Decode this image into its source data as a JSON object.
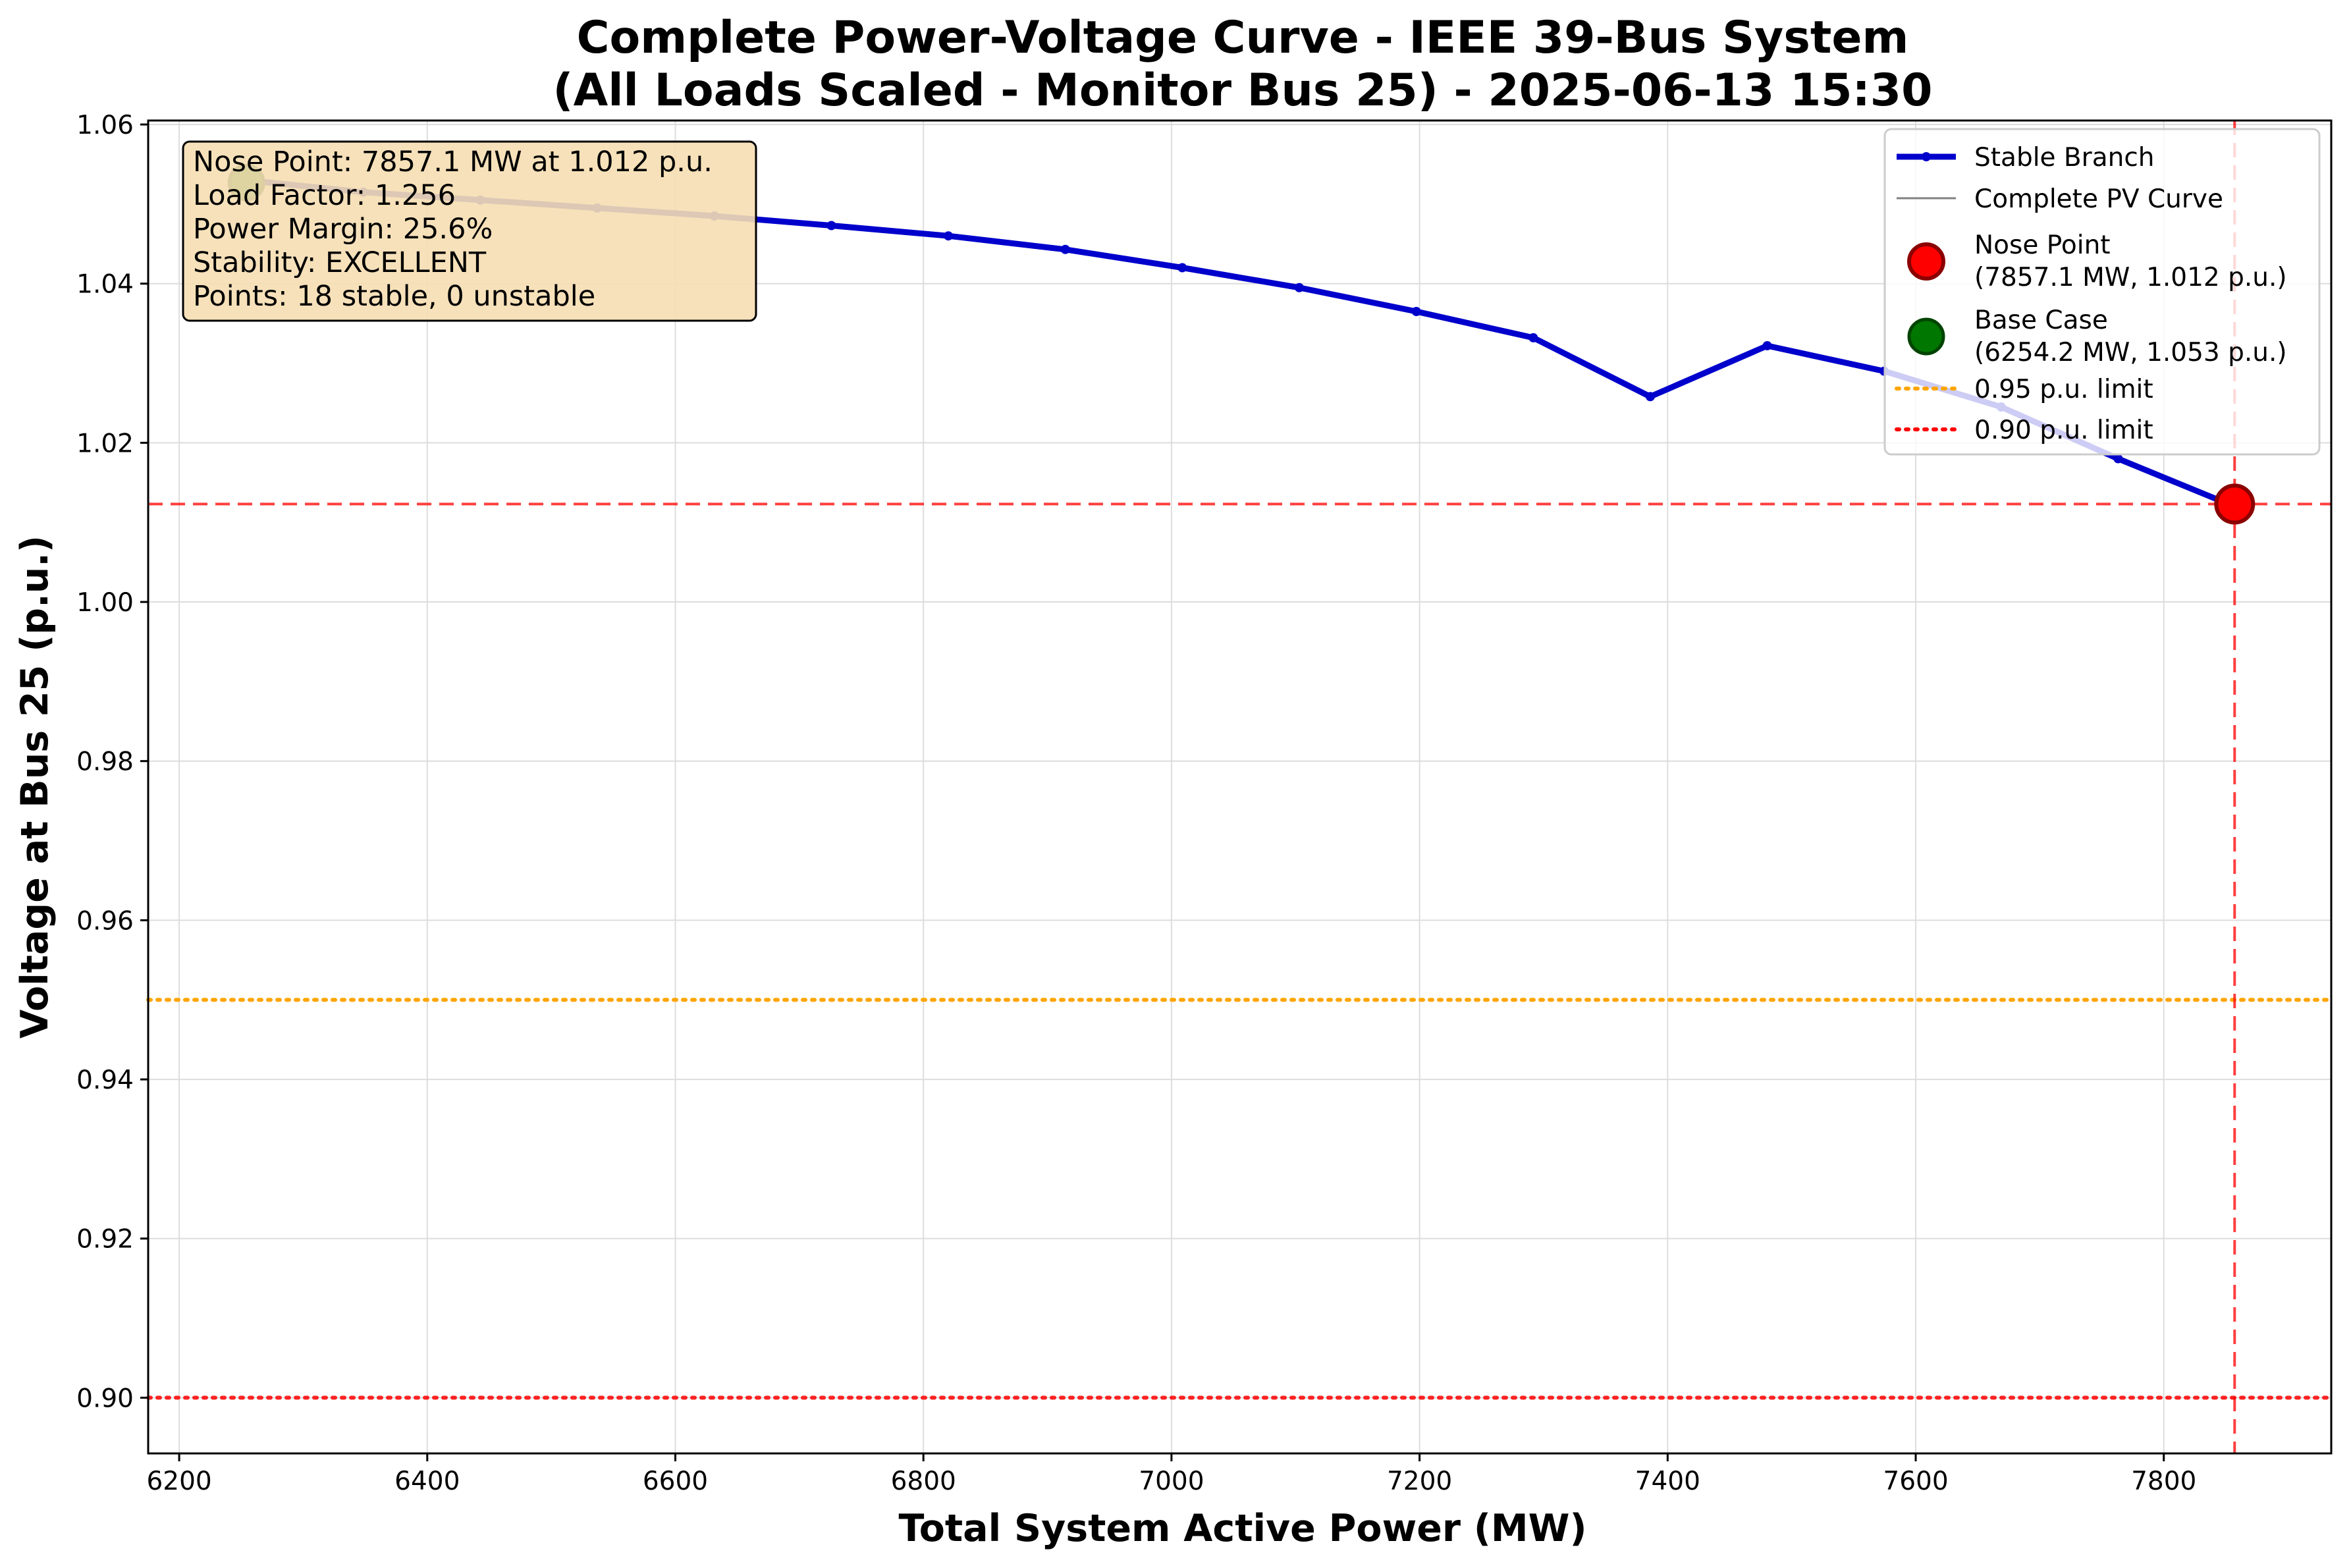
{
  "chart_data": {
    "type": "line",
    "title_line1": "Complete Power-Voltage Curve - IEEE 39-Bus System",
    "title_line2": "(All Loads Scaled - Monitor Bus 25) - 2025-06-13 15:30",
    "xlabel": "Total System Active Power (MW)",
    "ylabel": "Voltage at Bus 25 (p.u.)",
    "xlim": [
      6175,
      7935
    ],
    "ylim": [
      0.893,
      1.0605
    ],
    "xticks": [
      6200,
      6400,
      6600,
      6800,
      7000,
      7200,
      7400,
      7600,
      7800
    ],
    "xtick_labels": [
      "6200",
      "6400",
      "6600",
      "6800",
      "7000",
      "7200",
      "7400",
      "7600",
      "7800"
    ],
    "yticks": [
      0.9,
      0.92,
      0.94,
      0.96,
      0.98,
      1.0,
      1.02,
      1.04,
      1.06
    ],
    "ytick_labels": [
      "0.90",
      "0.92",
      "0.94",
      "0.96",
      "0.98",
      "1.00",
      "1.02",
      "1.04",
      "1.06"
    ],
    "grid": true,
    "legend_position": "upper-right",
    "series": [
      {
        "name": "Stable Branch",
        "color": "#0000cc",
        "x": [
          6254.2,
          6348.5,
          6442.8,
          6537.1,
          6631.5,
          6725.8,
          6820.1,
          6914.4,
          7008.7,
          7103.0,
          7197.4,
          7291.7,
          7386.0,
          7480.3,
          7574.6,
          7668.9,
          7763.2,
          7857.1
        ],
        "y": [
          1.053,
          1.0515,
          1.0505,
          1.0495,
          1.0485,
          1.0473,
          1.046,
          1.0443,
          1.042,
          1.0395,
          1.0365,
          1.0332,
          1.0258,
          1.0322,
          1.029,
          1.0245,
          1.018,
          1.012
        ]
      },
      {
        "name": "Complete PV Curve",
        "color": "#808080",
        "x": [
          6254.2,
          6348.5,
          6442.8,
          6537.1,
          6631.5,
          6725.8,
          6820.1,
          6914.4,
          7008.7,
          7103.0,
          7197.4,
          7291.7,
          7386.0,
          7480.3,
          7574.6,
          7668.9,
          7763.2,
          7857.1
        ],
        "y": [
          1.053,
          1.0515,
          1.0505,
          1.0495,
          1.0485,
          1.0473,
          1.046,
          1.0443,
          1.042,
          1.0395,
          1.0365,
          1.0332,
          1.0258,
          1.0322,
          1.029,
          1.0245,
          1.018,
          1.012
        ]
      }
    ],
    "nose_point": {
      "x": 7857.1,
      "y": 1.0123,
      "color": "#ff0000"
    },
    "base_case": {
      "x": 6254.2,
      "y": 1.0527,
      "color": "#007700"
    },
    "limits": [
      {
        "name": "0.95 p.u. limit",
        "value": 0.95,
        "color": "#ffa500"
      },
      {
        "name": "0.90 p.u. limit",
        "value": 0.9,
        "color": "#ff0000"
      }
    ],
    "info_box": [
      "Nose Point: 7857.1 MW at 1.012 p.u.",
      "Load Factor: 1.256",
      "Power Margin: 25.6%",
      "Stability: EXCELLENT",
      "Points: 18 stable, 0 unstable"
    ],
    "legend": [
      {
        "kind": "line",
        "label": "Stable Branch",
        "label2": ""
      },
      {
        "kind": "thinline",
        "label": "Complete PV Curve",
        "label2": ""
      },
      {
        "kind": "nose",
        "label": "Nose Point",
        "label2": "(7857.1 MW, 1.012 p.u.)"
      },
      {
        "kind": "base",
        "label": "Base Case",
        "label2": "(6254.2 MW, 1.053 p.u.)"
      },
      {
        "kind": "limit95",
        "label": "0.95 p.u. limit",
        "label2": ""
      },
      {
        "kind": "limit90",
        "label": "0.90 p.u. limit",
        "label2": ""
      }
    ]
  }
}
